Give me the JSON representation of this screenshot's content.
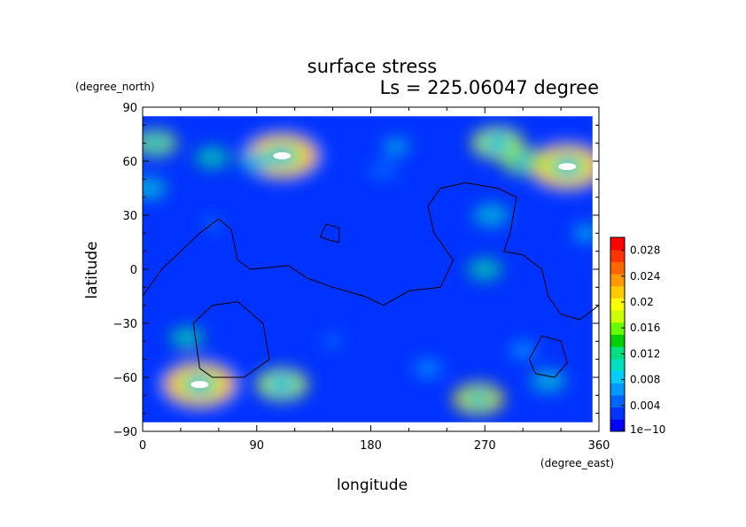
{
  "chart_data": {
    "type": "heatmap",
    "title": "surface stress",
    "subtitle": "Ls = 225.06047 degree",
    "xlabel": "longitude",
    "ylabel": "latitude",
    "x_units": "(degree_east)",
    "y_units": "(degree_north)",
    "xlim": [
      0,
      360
    ],
    "ylim": [
      -90,
      90
    ],
    "x_ticks": [
      0,
      90,
      180,
      270,
      360
    ],
    "y_ticks": [
      90,
      60,
      30,
      0,
      -30,
      -60,
      -90
    ],
    "x_tick_labels": [
      "0",
      "90",
      "180",
      "270",
      "360"
    ],
    "y_tick_labels": [
      "90",
      "60",
      "30",
      "0",
      "−30",
      "−60",
      "−90"
    ],
    "colorbar": {
      "min": 0,
      "max": 0.03,
      "tick_values": [
        0,
        0.004,
        0.008,
        0.012,
        0.016,
        0.02,
        0.024,
        0.028
      ],
      "tick_labels": [
        "1e−10",
        "0.004",
        "0.008",
        "0.012",
        "0.016",
        "0.02",
        "0.024",
        "0.028"
      ],
      "colors": [
        "#0000ff",
        "#0033ff",
        "#0066ff",
        "#0099ff",
        "#00ccff",
        "#00e0c0",
        "#00e080",
        "#00d000",
        "#66ff00",
        "#ccff00",
        "#ffff00",
        "#ffcc00",
        "#ff9900",
        "#ff6600",
        "#ff3300",
        "#ff0000"
      ]
    },
    "data_coverage": {
      "lon": [
        0,
        355
      ],
      "lat": [
        -85,
        85
      ]
    },
    "fields": [
      {
        "lon": 10,
        "lat": 70,
        "value": 0.018
      },
      {
        "lon": 55,
        "lat": 62,
        "value": 0.014
      },
      {
        "lon": 110,
        "lat": 63,
        "value": 0.032
      },
      {
        "lon": 90,
        "lat": 60,
        "value": 0.012
      },
      {
        "lon": 200,
        "lat": 68,
        "value": 0.01
      },
      {
        "lon": 280,
        "lat": 70,
        "value": 0.02
      },
      {
        "lon": 335,
        "lat": 57,
        "value": 0.032
      },
      {
        "lon": 300,
        "lat": 60,
        "value": 0.018
      },
      {
        "lon": 5,
        "lat": 45,
        "value": 0.012
      },
      {
        "lon": 35,
        "lat": -38,
        "value": 0.014
      },
      {
        "lon": 45,
        "lat": -64,
        "value": 0.032
      },
      {
        "lon": 110,
        "lat": -64,
        "value": 0.02
      },
      {
        "lon": 265,
        "lat": -72,
        "value": 0.022
      },
      {
        "lon": 320,
        "lat": -62,
        "value": 0.012
      },
      {
        "lon": 270,
        "lat": 0,
        "value": 0.014
      },
      {
        "lon": 275,
        "lat": 30,
        "value": 0.012
      },
      {
        "lon": 300,
        "lat": -45,
        "value": 0.008
      },
      {
        "lon": 225,
        "lat": -55,
        "value": 0.008
      },
      {
        "lon": 190,
        "lat": 55,
        "value": 0.007
      },
      {
        "lon": 55,
        "lat": 25,
        "value": 0.006
      },
      {
        "lon": 150,
        "lat": -40,
        "value": 0.006
      },
      {
        "lon": 350,
        "lat": 20,
        "value": 0.01
      }
    ],
    "contours": [
      {
        "name": "tharsis-outline",
        "points": [
          [
            0,
            -15
          ],
          [
            15,
            0
          ],
          [
            30,
            10
          ],
          [
            45,
            20
          ],
          [
            60,
            28
          ],
          [
            70,
            22
          ],
          [
            75,
            5
          ],
          [
            85,
            0
          ],
          [
            115,
            2
          ],
          [
            130,
            -5
          ],
          [
            150,
            -10
          ],
          [
            175,
            -15
          ],
          [
            190,
            -20
          ],
          [
            210,
            -12
          ],
          [
            235,
            -10
          ],
          [
            245,
            5
          ],
          [
            230,
            20
          ],
          [
            225,
            35
          ],
          [
            235,
            45
          ],
          [
            255,
            48
          ],
          [
            280,
            45
          ],
          [
            295,
            40
          ],
          [
            290,
            20
          ],
          [
            285,
            10
          ],
          [
            300,
            8
          ],
          [
            315,
            0
          ],
          [
            320,
            -15
          ],
          [
            330,
            -25
          ],
          [
            345,
            -28
          ],
          [
            360,
            -20
          ]
        ]
      },
      {
        "name": "elysium-small",
        "points": [
          [
            140,
            18
          ],
          [
            145,
            25
          ],
          [
            155,
            23
          ],
          [
            155,
            15
          ],
          [
            148,
            16
          ],
          [
            140,
            18
          ]
        ]
      },
      {
        "name": "hellas-basin",
        "points": [
          [
            45,
            -55
          ],
          [
            40,
            -30
          ],
          [
            55,
            -20
          ],
          [
            75,
            -18
          ],
          [
            95,
            -30
          ],
          [
            100,
            -50
          ],
          [
            80,
            -60
          ],
          [
            55,
            -60
          ],
          [
            45,
            -55
          ]
        ]
      },
      {
        "name": "argyre-basin",
        "points": [
          [
            305,
            -50
          ],
          [
            315,
            -37
          ],
          [
            330,
            -40
          ],
          [
            335,
            -52
          ],
          [
            325,
            -60
          ],
          [
            310,
            -58
          ],
          [
            305,
            -50
          ]
        ]
      }
    ]
  }
}
